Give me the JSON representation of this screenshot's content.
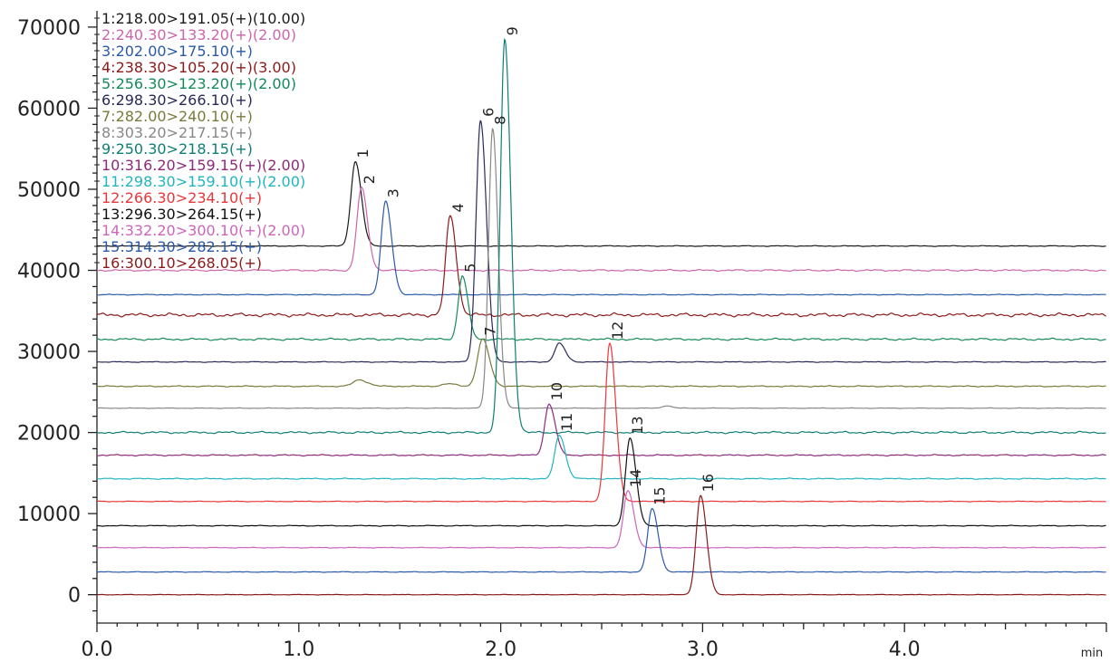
{
  "chart_data": {
    "type": "line",
    "title": "",
    "xlabel": "",
    "ylabel": "",
    "x_unit": "min",
    "xlim": [
      0.0,
      5.0
    ],
    "ylim": [
      -3500,
      72000
    ],
    "x_ticks": [
      "0.0",
      "1.0",
      "2.0",
      "3.0",
      "4.0"
    ],
    "x_tick_values": [
      0,
      1,
      2,
      3,
      4
    ],
    "y_ticks": [
      "0",
      "10000",
      "20000",
      "30000",
      "40000",
      "50000",
      "60000",
      "70000"
    ],
    "y_tick_values": [
      0,
      10000,
      20000,
      30000,
      40000,
      50000,
      60000,
      70000
    ],
    "grid": false,
    "legend_position": "top-left",
    "series": [
      {
        "label": "1",
        "name": "1:218.00>191.05(+)(10.00)",
        "color": "#1a1a1a",
        "baseline": 43000,
        "peaks": [
          {
            "rt": 1.28,
            "height": 10400,
            "width": 0.022
          }
        ],
        "noise": 60
      },
      {
        "label": "2",
        "name": "2:240.30>133.20(+)(2.00)",
        "color": "#cc66aa",
        "baseline": 40000,
        "peaks": [
          {
            "rt": 1.31,
            "height": 10200,
            "width": 0.022
          }
        ],
        "noise": 120
      },
      {
        "label": "3",
        "name": "3:202.00>175.10(+)",
        "color": "#2a5aa8",
        "baseline": 37000,
        "peaks": [
          {
            "rt": 1.43,
            "height": 11500,
            "width": 0.022
          }
        ],
        "noise": 60
      },
      {
        "label": "4",
        "name": "4:238.30>105.20(+)(3.00)",
        "color": "#8b1a1a",
        "baseline": 34500,
        "peaks": [
          {
            "rt": 1.75,
            "height": 12200,
            "width": 0.022
          }
        ],
        "noise": 250
      },
      {
        "label": "5",
        "name": "5:256.30>123.20(+)(2.00)",
        "color": "#138a5a",
        "baseline": 31500,
        "peaks": [
          {
            "rt": 1.81,
            "height": 7800,
            "width": 0.02
          }
        ],
        "noise": 150
      },
      {
        "label": "6",
        "name": "6:298.30>266.10(+)",
        "color": "#2a2a5a",
        "baseline": 28700,
        "peaks": [
          {
            "rt": 1.9,
            "height": 29800,
            "width": 0.022
          },
          {
            "rt": 2.29,
            "height": 2300,
            "width": 0.022
          }
        ],
        "noise": 60
      },
      {
        "label": "7",
        "name": "7:282.00>240.10(+)",
        "color": "#7a7a3a",
        "baseline": 25700,
        "peaks": [
          {
            "rt": 1.3,
            "height": 800,
            "width": 0.03
          },
          {
            "rt": 1.74,
            "height": 300,
            "width": 0.03
          },
          {
            "rt": 1.91,
            "height": 5800,
            "width": 0.025
          }
        ],
        "noise": 80
      },
      {
        "label": "8",
        "name": "8:303.20>217.15(+)",
        "color": "#888888",
        "baseline": 23000,
        "peaks": [
          {
            "rt": 1.96,
            "height": 34500,
            "width": 0.02
          },
          {
            "rt": 2.82,
            "height": 300,
            "width": 0.02
          }
        ],
        "noise": 40
      },
      {
        "label": "9",
        "name": "9:250.30>218.15(+)",
        "color": "#0f7f75",
        "baseline": 20000,
        "peaks": [
          {
            "rt": 2.02,
            "height": 48500,
            "width": 0.022
          }
        ],
        "noise": 150
      },
      {
        "label": "10",
        "name": "10:316.20>159.15(+)(2.00)",
        "color": "#8c2a7a",
        "baseline": 17200,
        "peaks": [
          {
            "rt": 2.24,
            "height": 6300,
            "width": 0.022
          }
        ],
        "noise": 100
      },
      {
        "label": "11",
        "name": "11:298.30>159.10(+)(2.00)",
        "color": "#20b5c0",
        "baseline": 14300,
        "peaks": [
          {
            "rt": 2.29,
            "height": 5400,
            "width": 0.022
          }
        ],
        "noise": 80
      },
      {
        "label": "12",
        "name": "12:266.30>234.10(+)",
        "color": "#e8373a",
        "baseline": 11500,
        "peaks": [
          {
            "rt": 2.54,
            "height": 19500,
            "width": 0.022
          }
        ],
        "noise": 50
      },
      {
        "label": "13",
        "name": "13:296.30>264.15(+)",
        "color": "#111111",
        "baseline": 8500,
        "peaks": [
          {
            "rt": 2.64,
            "height": 10800,
            "width": 0.022
          }
        ],
        "noise": 60
      },
      {
        "label": "14",
        "name": "14:332.20>300.10(+)(2.00)",
        "color": "#cc66bb",
        "baseline": 5800,
        "peaks": [
          {
            "rt": 2.63,
            "height": 7000,
            "width": 0.022
          }
        ],
        "noise": 50
      },
      {
        "label": "15",
        "name": "15:314.30>282.15(+)",
        "color": "#2a5aa8",
        "baseline": 2800,
        "peaks": [
          {
            "rt": 2.75,
            "height": 7800,
            "width": 0.022
          }
        ],
        "noise": 50
      },
      {
        "label": "16",
        "name": "16:300.10>268.05(+)",
        "color": "#8b1a1a",
        "baseline": 0,
        "peaks": [
          {
            "rt": 2.99,
            "height": 12200,
            "width": 0.022
          }
        ],
        "noise": 40
      }
    ]
  }
}
